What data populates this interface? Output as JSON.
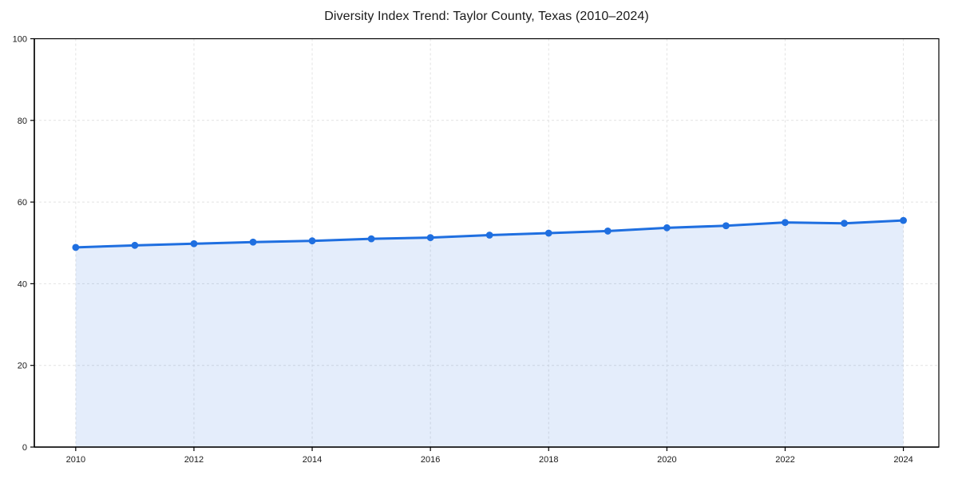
{
  "chart_data": {
    "type": "area",
    "title": "Diversity Index Trend: Taylor County, Texas (2010–2024)",
    "series_name": "Diversity Index",
    "x": [
      2010,
      2011,
      2012,
      2013,
      2014,
      2015,
      2016,
      2017,
      2018,
      2019,
      2020,
      2021,
      2022,
      2023,
      2024
    ],
    "values": [
      48.9,
      49.4,
      49.8,
      50.2,
      50.5,
      51.0,
      51.3,
      51.9,
      52.4,
      52.9,
      53.7,
      54.2,
      55.0,
      54.8,
      55.5
    ],
    "xlabel": "",
    "ylabel": "",
    "xlim": [
      2009.3,
      2024.6
    ],
    "ylim": [
      0,
      100
    ],
    "x_ticks": [
      2010,
      2012,
      2014,
      2016,
      2018,
      2020,
      2022,
      2024
    ],
    "y_ticks": [
      0,
      20,
      40,
      60,
      80,
      100
    ],
    "grid": true,
    "grid_style": "dashed",
    "legend": "none",
    "marker": "circle",
    "colors": {
      "line": "#1f6fe0",
      "marker": "#1f6fe0",
      "fill": "#1f6fe0",
      "fill_opacity": 0.12,
      "grid": "#e2e2e2",
      "axis": "#000000",
      "tick_label": "#1a1a1a",
      "background": "#ffffff"
    }
  }
}
